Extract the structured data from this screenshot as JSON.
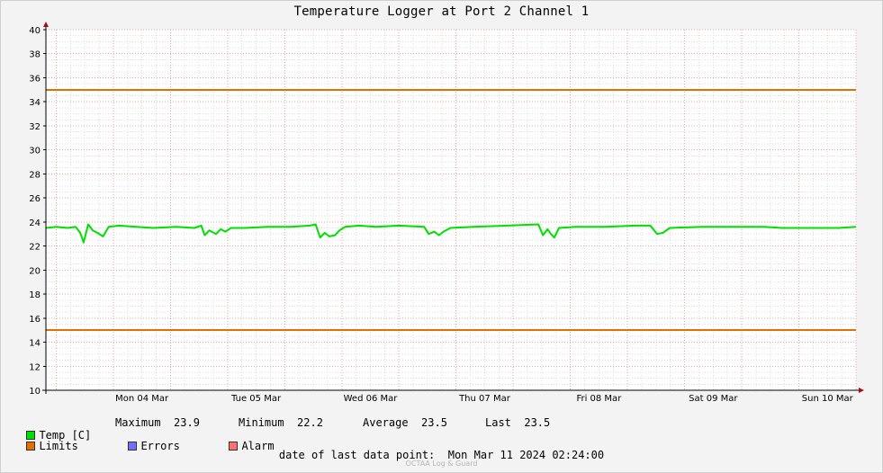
{
  "chart_data": {
    "type": "line",
    "title": "Temperature Logger at Port 2 Channel 1",
    "ylim": [
      10,
      40
    ],
    "yticks": [
      10,
      12,
      14,
      16,
      18,
      20,
      22,
      24,
      26,
      28,
      30,
      32,
      34,
      36,
      38,
      40
    ],
    "categories": [
      "Mon 04 Mar",
      "Tue 05 Mar",
      "Wed 06 Mar",
      "Thu 07 Mar",
      "Fri 08 Mar",
      "Sat 09 Mar",
      "Sun 10 Mar"
    ],
    "x_range_days": [
      0.66,
      7.75
    ],
    "grid": true,
    "series": [
      {
        "name": "Temp [C]",
        "color": "#00e000",
        "points": [
          [
            0.66,
            23.5
          ],
          [
            0.75,
            23.6
          ],
          [
            0.85,
            23.5
          ],
          [
            0.92,
            23.6
          ],
          [
            0.96,
            23.1
          ],
          [
            0.99,
            22.3
          ],
          [
            1.03,
            23.8
          ],
          [
            1.07,
            23.3
          ],
          [
            1.11,
            23.1
          ],
          [
            1.16,
            22.8
          ],
          [
            1.21,
            23.6
          ],
          [
            1.3,
            23.7
          ],
          [
            1.45,
            23.6
          ],
          [
            1.6,
            23.5
          ],
          [
            1.8,
            23.6
          ],
          [
            1.96,
            23.5
          ],
          [
            2.02,
            23.7
          ],
          [
            2.05,
            22.9
          ],
          [
            2.09,
            23.3
          ],
          [
            2.15,
            23.0
          ],
          [
            2.19,
            23.4
          ],
          [
            2.23,
            23.2
          ],
          [
            2.28,
            23.5
          ],
          [
            2.4,
            23.5
          ],
          [
            2.6,
            23.6
          ],
          [
            2.8,
            23.6
          ],
          [
            2.97,
            23.7
          ],
          [
            3.02,
            23.8
          ],
          [
            3.06,
            22.7
          ],
          [
            3.1,
            23.1
          ],
          [
            3.14,
            22.8
          ],
          [
            3.19,
            22.9
          ],
          [
            3.23,
            23.3
          ],
          [
            3.28,
            23.6
          ],
          [
            3.4,
            23.7
          ],
          [
            3.55,
            23.6
          ],
          [
            3.75,
            23.7
          ],
          [
            3.97,
            23.6
          ],
          [
            4.01,
            23.0
          ],
          [
            4.06,
            23.2
          ],
          [
            4.1,
            22.9
          ],
          [
            4.14,
            23.2
          ],
          [
            4.2,
            23.5
          ],
          [
            4.4,
            23.6
          ],
          [
            4.7,
            23.7
          ],
          [
            4.97,
            23.8
          ],
          [
            5.01,
            22.9
          ],
          [
            5.05,
            23.4
          ],
          [
            5.08,
            23.0
          ],
          [
            5.11,
            22.7
          ],
          [
            5.15,
            23.5
          ],
          [
            5.3,
            23.6
          ],
          [
            5.55,
            23.6
          ],
          [
            5.82,
            23.7
          ],
          [
            5.95,
            23.7
          ],
          [
            6.01,
            23.0
          ],
          [
            6.06,
            23.1
          ],
          [
            6.12,
            23.5
          ],
          [
            6.4,
            23.6
          ],
          [
            6.7,
            23.6
          ],
          [
            6.95,
            23.6
          ],
          [
            7.1,
            23.5
          ],
          [
            7.35,
            23.5
          ],
          [
            7.6,
            23.5
          ],
          [
            7.75,
            23.6
          ]
        ]
      },
      {
        "name": "Limits",
        "color": "#e07000",
        "levels": [
          35,
          15
        ]
      }
    ]
  },
  "legend": {
    "temp_label": "Temp [C]",
    "maximum_label": "Maximum",
    "maximum_value": "23.9",
    "minimum_label": "Minimum",
    "minimum_value": "22.2",
    "average_label": "Average",
    "average_value": "23.5",
    "last_label": "Last",
    "last_value": "23.5",
    "limits_label": "Limits",
    "errors_label": "Errors",
    "alarm_label": "Alarm",
    "colors": {
      "temp": "#00e000",
      "limits": "#e07000",
      "errors": "#7070ff",
      "alarm": "#ff7070"
    }
  },
  "footer": {
    "last_point_label": "date of last data point:",
    "last_point_value": "Mon Mar 11 2024 02:24:00"
  },
  "watermark": "OCTAA Log & Guard"
}
